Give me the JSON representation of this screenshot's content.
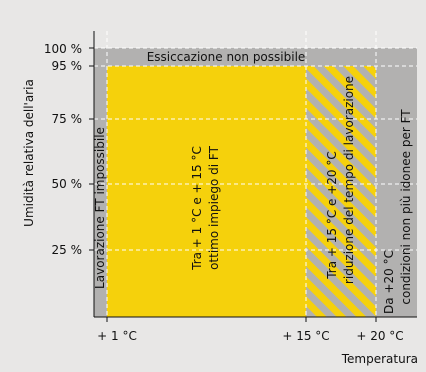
{
  "y_axis": {
    "title": "Umidità relativa dell'aria",
    "ticks": [
      {
        "value": 100,
        "label": "100 %"
      },
      {
        "value": 95,
        "label": "95 %"
      },
      {
        "value": 75,
        "label": "75 %"
      },
      {
        "value": 50,
        "label": "50 %"
      },
      {
        "value": 25,
        "label": "25 %"
      }
    ]
  },
  "x_axis": {
    "title": "Temperatura",
    "ticks": [
      "+ 1 °C",
      "+ 15 °C",
      "+ 20 °C"
    ]
  },
  "zones": {
    "top_band": "Essiccazione non possibile",
    "left_band": "Lavorazione FT impossibile",
    "optimal_line1": "Tra + 1 °C e + 15 °C",
    "optimal_line2": "ottimo impiego di FT",
    "reduced_line1": "Tra + 15 °C e +20 °C",
    "reduced_line2": "riduzione del tempo di lavorazione",
    "unsuitable_line1": "Da +20 °C",
    "unsuitable_line2": "condizioni non più idonee per FT"
  },
  "colors": {
    "panel_bg": "#e8e7e6",
    "gray_zone": "#b2b1b0",
    "yellow_zone": "#f5d10c",
    "stripe": "#f5d10c"
  }
}
